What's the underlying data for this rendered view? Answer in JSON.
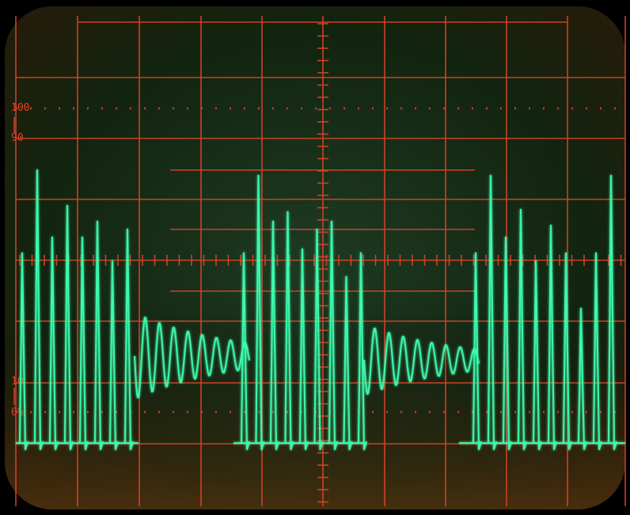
{
  "screen": {
    "description_free": true,
    "graticule_color": "#e0442a",
    "trace_color": "#3dffb0",
    "background_color": "#0c1a0e"
  },
  "scale_labels": {
    "top": "100",
    "ninety": "90",
    "ten": "10",
    "zero": "0%"
  },
  "trace": {
    "bursts": 3,
    "pattern": "damped-oscillation"
  }
}
